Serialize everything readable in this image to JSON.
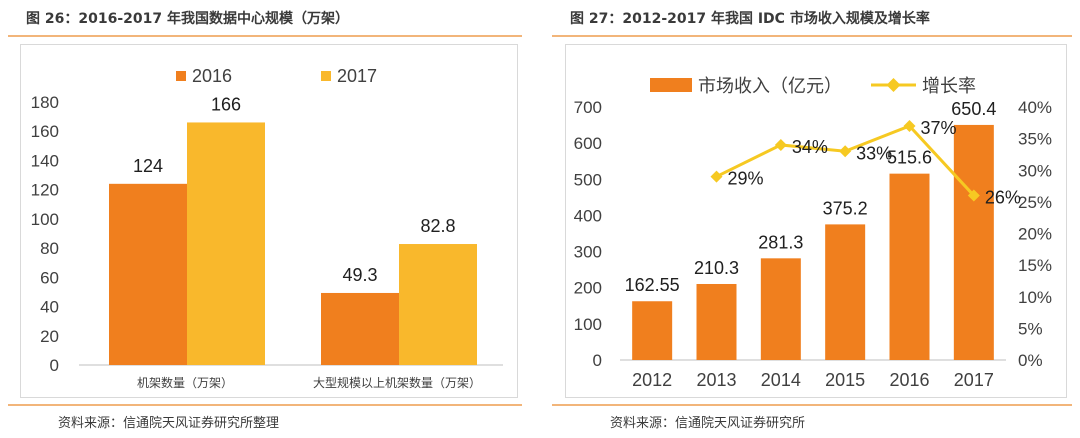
{
  "left": {
    "title": "图 26：2016-2017 年我国数据中心规模（万架）",
    "source": "资料来源：信通院天风证券研究所整理",
    "chart_data": {
      "type": "bar",
      "categories": [
        "机架数量（万架）",
        "大型规模以上机架数量（万架）"
      ],
      "series": [
        {
          "name": "2016",
          "values": [
            124,
            49.3
          ],
          "color": "#f07f1e"
        },
        {
          "name": "2017",
          "values": [
            166,
            82.8
          ],
          "color": "#f9b82c"
        }
      ],
      "value_labels": [
        [
          "124",
          "49.3"
        ],
        [
          "166",
          "82.8"
        ]
      ],
      "ylim": [
        0,
        180
      ],
      "yticks": [
        0,
        20,
        40,
        60,
        80,
        100,
        120,
        140,
        160,
        180
      ],
      "legend": "top",
      "grid": false
    }
  },
  "right": {
    "title": "图 27：2012-2017 年我国 IDC 市场收入规模及增长率",
    "source": "资料来源：信通院天风证券研究所",
    "chart_data": {
      "type": "bar",
      "categories": [
        "2012",
        "2013",
        "2014",
        "2015",
        "2016",
        "2017"
      ],
      "series": [
        {
          "name": "市场收入（亿元）",
          "type": "bar",
          "axis": "left",
          "values": [
            162.55,
            210.3,
            281.3,
            375.2,
            515.6,
            650.4
          ],
          "color": "#f07f1e"
        },
        {
          "name": "增长率",
          "type": "line",
          "axis": "right",
          "values": [
            null,
            29,
            34,
            33,
            37,
            26
          ],
          "color": "#f6c922"
        }
      ],
      "bar_labels": [
        "162.55",
        "210.3",
        "281.3",
        "375.2",
        "515.6",
        "650.4"
      ],
      "line_labels": [
        "",
        "29%",
        "34%",
        "33%",
        "37%",
        "26%"
      ],
      "ylim": [
        0,
        700
      ],
      "yticks": [
        0,
        100,
        200,
        300,
        400,
        500,
        600,
        700
      ],
      "y2lim": [
        0,
        40
      ],
      "y2ticks": [
        "0%",
        "5%",
        "10%",
        "15%",
        "20%",
        "25%",
        "30%",
        "35%",
        "40%"
      ],
      "legend": "top",
      "grid": false
    }
  }
}
